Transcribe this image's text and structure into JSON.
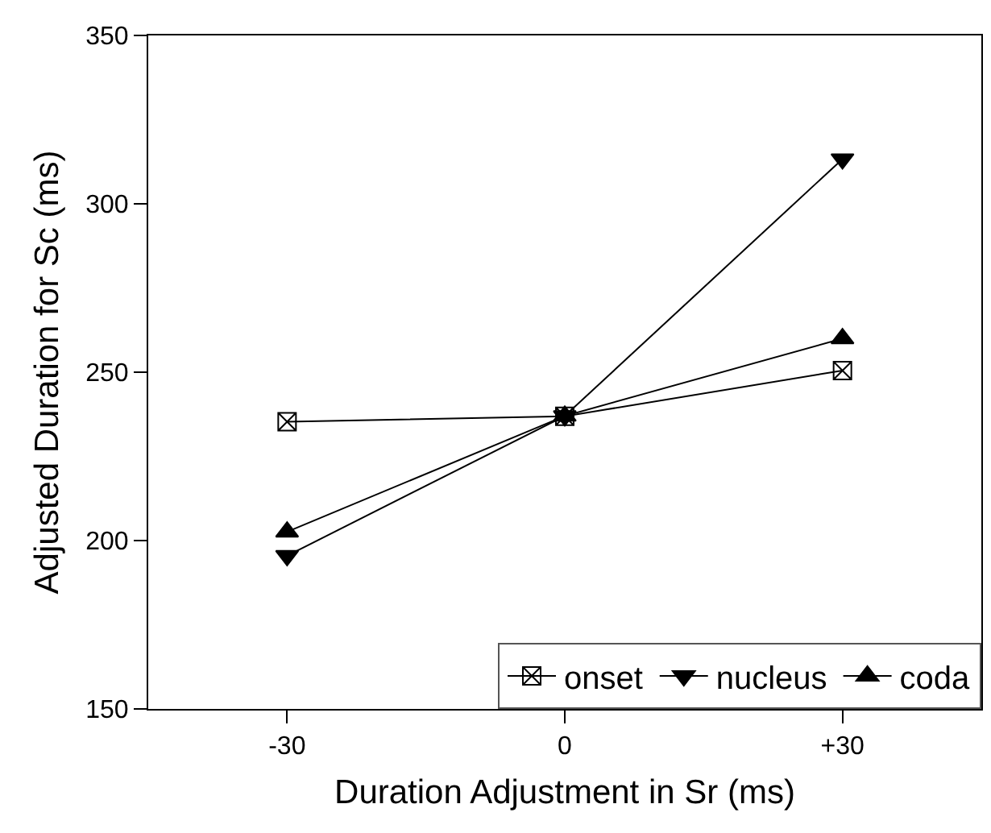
{
  "chart_data": {
    "type": "line",
    "xlabel": "Duration Adjustment in Sr (ms)",
    "ylabel": "Adjusted Duration for Sc (ms)",
    "x": [
      -30,
      0,
      30
    ],
    "xlim": [
      -45,
      45
    ],
    "xticks": [
      {
        "value": -30,
        "label": "-30"
      },
      0,
      {
        "value": 30,
        "label": "+30"
      }
    ],
    "ylim": [
      150,
      350
    ],
    "yticks": [
      150,
      200,
      250,
      300,
      350
    ],
    "legend": "bottom right",
    "line_style": "solid",
    "series": [
      {
        "name": "onset",
        "color": "#000000",
        "marker": "cross",
        "values": [
          235.3,
          236.9,
          250.5
        ]
      },
      {
        "name": "nucleus",
        "color": "#000000",
        "marker": "triangle-down",
        "values": [
          195.5,
          237,
          313.3
        ]
      },
      {
        "name": "coda",
        "color": "#000000",
        "marker": "triangle",
        "values": [
          202.6,
          237,
          260
        ]
      }
    ]
  }
}
